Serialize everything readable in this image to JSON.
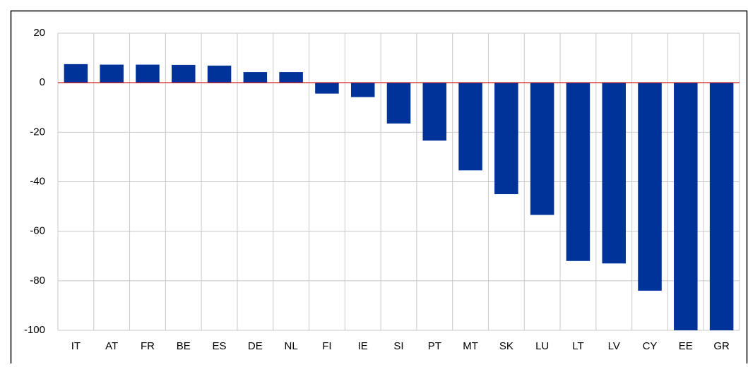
{
  "chart_data": {
    "type": "bar",
    "categories": [
      "IT",
      "AT",
      "FR",
      "BE",
      "ES",
      "DE",
      "NL",
      "FI",
      "IE",
      "SI",
      "PT",
      "MT",
      "SK",
      "LU",
      "LT",
      "LV",
      "CY",
      "EE",
      "GR"
    ],
    "values": [
      7.5,
      7.3,
      7.3,
      7.2,
      6.9,
      4.3,
      4.3,
      -4.4,
      -5.8,
      -16.5,
      -23.4,
      -35.4,
      -45,
      -53.4,
      -72,
      -73,
      -84,
      -100,
      -100
    ],
    "color": "#003399",
    "ylim": [
      -100,
      20
    ],
    "yticks": [
      -100,
      -80,
      -60,
      -40,
      -20,
      0,
      20
    ],
    "grid": true
  }
}
